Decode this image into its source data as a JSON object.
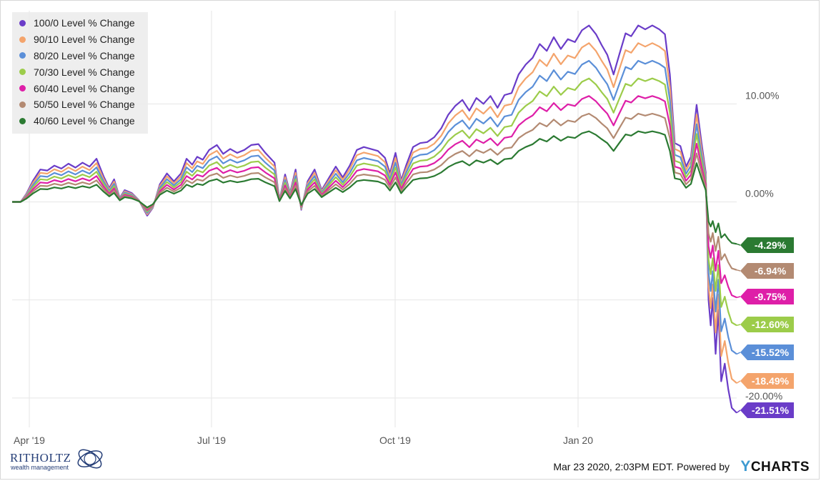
{
  "chart_data": {
    "type": "line",
    "x_ticks": [
      "Apr '19",
      "Jul '19",
      "Oct '19",
      "Jan 20"
    ],
    "y_ticks": [
      "10.00%",
      "0.00%",
      "-20.00%"
    ],
    "ylim": [
      -23,
      19.5
    ],
    "grid": true,
    "legend_position": "top-left",
    "series": [
      {
        "name": "100/0 Level % Change",
        "color": "#6a3cc8",
        "last_label": "-21.51%",
        "factor": 1.0,
        "last": -21.51
      },
      {
        "name": "90/10 Level % Change",
        "color": "#f4a46c",
        "last_label": "-18.49%",
        "factor": 0.9,
        "last": -18.49
      },
      {
        "name": "80/20 Level % Change",
        "color": "#5b8fd8",
        "last_label": "-15.52%",
        "factor": 0.8,
        "last": -15.52
      },
      {
        "name": "70/30 Level % Change",
        "color": "#9ccc4a",
        "last_label": "-12.60%",
        "factor": 0.7,
        "last": -12.6
      },
      {
        "name": "60/40 Level % Change",
        "color": "#de1fa8",
        "last_label": "-9.75%",
        "factor": 0.6,
        "last": -9.75
      },
      {
        "name": "50/50 Level % Change",
        "color": "#b38a72",
        "last_label": "-6.94%",
        "factor": 0.5,
        "last": -6.94
      },
      {
        "name": "40/60 Level % Change",
        "color": "#2b7a32",
        "last_label": "-4.29%",
        "factor": 0.4,
        "last": -4.29
      }
    ],
    "base_path": {
      "x_range": [
        0,
        100
      ],
      "points": [
        [
          0,
          0
        ],
        [
          1.2,
          0
        ],
        [
          2,
          0.8
        ],
        [
          3,
          2.2
        ],
        [
          4,
          3.3
        ],
        [
          5,
          3.2
        ],
        [
          6,
          3.7
        ],
        [
          7,
          3.4
        ],
        [
          8,
          3.9
        ],
        [
          9,
          3.5
        ],
        [
          10,
          4.0
        ],
        [
          11,
          3.6
        ],
        [
          12,
          4.4
        ],
        [
          13,
          2.6
        ],
        [
          13.8,
          1.4
        ],
        [
          14.5,
          2.3
        ],
        [
          15.3,
          0.4
        ],
        [
          16,
          1.2
        ],
        [
          17,
          0.9
        ],
        [
          18,
          0.2
        ],
        [
          19.2,
          -1.4
        ],
        [
          20,
          -0.6
        ],
        [
          21,
          1.8
        ],
        [
          22,
          2.9
        ],
        [
          23,
          2.1
        ],
        [
          24,
          2.9
        ],
        [
          24.8,
          4.4
        ],
        [
          25.6,
          3.8
        ],
        [
          26.3,
          4.6
        ],
        [
          27.1,
          4.3
        ],
        [
          28,
          5.3
        ],
        [
          29.1,
          5.8
        ],
        [
          30,
          4.9
        ],
        [
          31,
          5.4
        ],
        [
          32,
          5.0
        ],
        [
          33,
          5.3
        ],
        [
          34,
          5.8
        ],
        [
          35,
          5.9
        ],
        [
          36,
          5.0
        ],
        [
          37.3,
          4.0
        ],
        [
          38,
          0.2
        ],
        [
          38.8,
          2.8
        ],
        [
          39.5,
          0.9
        ],
        [
          40.3,
          3.3
        ],
        [
          41.1,
          -0.8
        ],
        [
          42,
          2.1
        ],
        [
          43,
          3.3
        ],
        [
          44,
          1.2
        ],
        [
          45,
          2.4
        ],
        [
          46,
          3.6
        ],
        [
          47,
          2.5
        ],
        [
          48,
          3.7
        ],
        [
          49,
          5.3
        ],
        [
          50,
          5.6
        ],
        [
          51,
          5.4
        ],
        [
          52,
          5.2
        ],
        [
          53,
          4.5
        ],
        [
          53.7,
          2.9
        ],
        [
          54.5,
          5.0
        ],
        [
          55.3,
          2.2
        ],
        [
          56,
          3.7
        ],
        [
          57,
          5.6
        ],
        [
          58,
          6.0
        ],
        [
          59,
          6.1
        ],
        [
          60,
          6.6
        ],
        [
          61,
          7.5
        ],
        [
          62,
          8.9
        ],
        [
          63,
          9.8
        ],
        [
          64,
          10.4
        ],
        [
          65,
          9.3
        ],
        [
          66,
          10.6
        ],
        [
          67,
          10.0
        ],
        [
          68,
          10.8
        ],
        [
          69,
          9.6
        ],
        [
          70,
          10.9
        ],
        [
          71,
          11.1
        ],
        [
          72,
          13.0
        ],
        [
          73,
          14.0
        ],
        [
          74,
          14.7
        ],
        [
          75,
          16.1
        ],
        [
          76,
          15.4
        ],
        [
          77,
          16.8
        ],
        [
          78,
          15.6
        ],
        [
          79,
          16.6
        ],
        [
          80,
          16.3
        ],
        [
          81,
          17.5
        ],
        [
          82,
          18.0
        ],
        [
          83,
          17.1
        ],
        [
          83.8,
          16.0
        ],
        [
          84.6,
          15.0
        ],
        [
          85.5,
          13.0
        ],
        [
          86.3,
          15.0
        ],
        [
          87.2,
          17.2
        ],
        [
          88,
          16.9
        ],
        [
          89,
          18.0
        ],
        [
          90,
          17.6
        ],
        [
          91,
          18.0
        ],
        [
          92,
          17.6
        ],
        [
          92.8,
          17.1
        ],
        [
          93.5,
          13.0
        ],
        [
          94.2,
          6.0
        ],
        [
          95,
          5.7
        ],
        [
          95.8,
          3.6
        ],
        [
          96.5,
          4.6
        ],
        [
          97.3,
          9.9
        ],
        [
          98,
          6.0
        ],
        [
          98.6,
          3.0
        ],
        [
          99,
          -10.0
        ],
        [
          99.3,
          -12.6
        ],
        [
          99.6,
          -9.8
        ],
        [
          100,
          -15.5
        ],
        [
          100.4,
          -11.0
        ],
        [
          100.8,
          -18.3
        ],
        [
          101.3,
          -16.5
        ],
        [
          101.8,
          -19.1
        ],
        [
          102.3,
          -21.0
        ],
        [
          103,
          -21.51
        ]
      ]
    },
    "x_range_data": [
      0,
      103
    ]
  },
  "footer": {
    "timestamp": "Mar 23 2020, 2:03PM EDT. Powered by",
    "brand_y": "Y",
    "brand_rest": "CHARTS"
  },
  "logo": {
    "name": "RITHOLTZ",
    "subtitle": "wealth management"
  },
  "colors": {
    "grid": "#e6e6e6",
    "axis_text": "#555555",
    "brand_blue": "#263f78"
  }
}
